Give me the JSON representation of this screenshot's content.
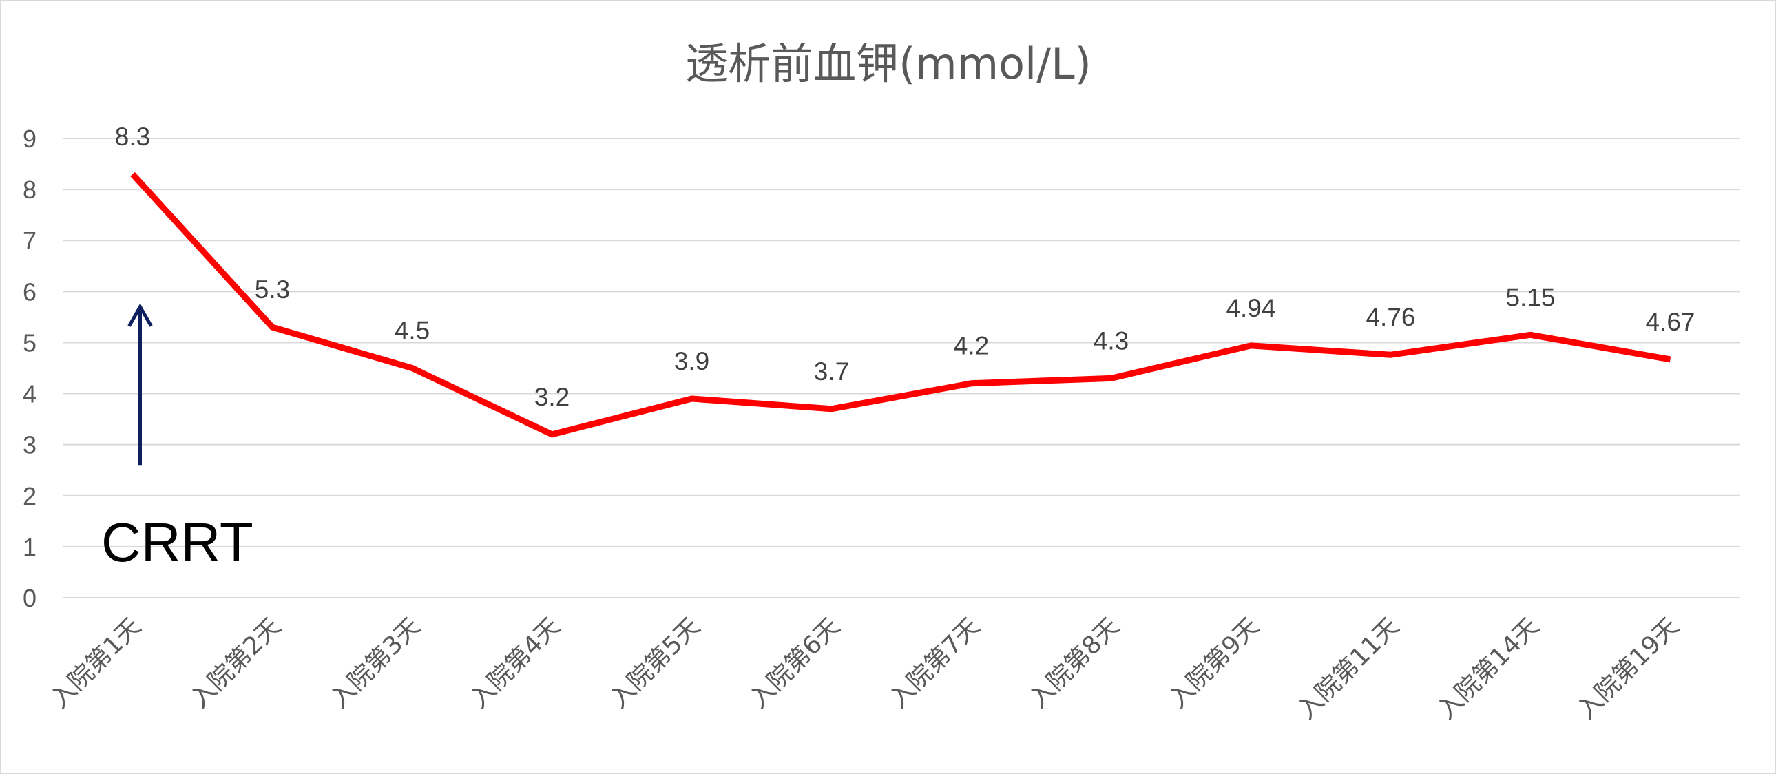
{
  "chart_data": {
    "type": "line",
    "title": "透析前血钾(mmol/L)",
    "xlabel": "",
    "ylabel": "",
    "ylim": [
      0,
      9
    ],
    "ytick_step": 1,
    "grid": true,
    "legend": "none",
    "categories": [
      "入院第1天",
      "入院第2天",
      "入院第3天",
      "入院第4天",
      "入院第5天",
      "入院第6天",
      "入院第7天",
      "入院第8天",
      "入院第9天",
      "入院第11天",
      "入院第14天",
      "入院第19天"
    ],
    "series": [
      {
        "values": [
          8.3,
          5.3,
          4.5,
          3.2,
          3.9,
          3.7,
          4.2,
          4.3,
          4.94,
          4.76,
          5.15,
          4.67
        ],
        "labels": [
          "8.3",
          "5.3",
          "4.5",
          "3.2",
          "3.9",
          "3.7",
          "4.2",
          "4.3",
          "4.94",
          "4.76",
          "5.15",
          "4.67"
        ],
        "color": "#ff0000"
      }
    ],
    "annotations": [
      {
        "text": "CRRT",
        "category_index": 0,
        "arrow_from": 2.6,
        "arrow_to": 5.7,
        "color": "#0d1f5c"
      }
    ]
  }
}
